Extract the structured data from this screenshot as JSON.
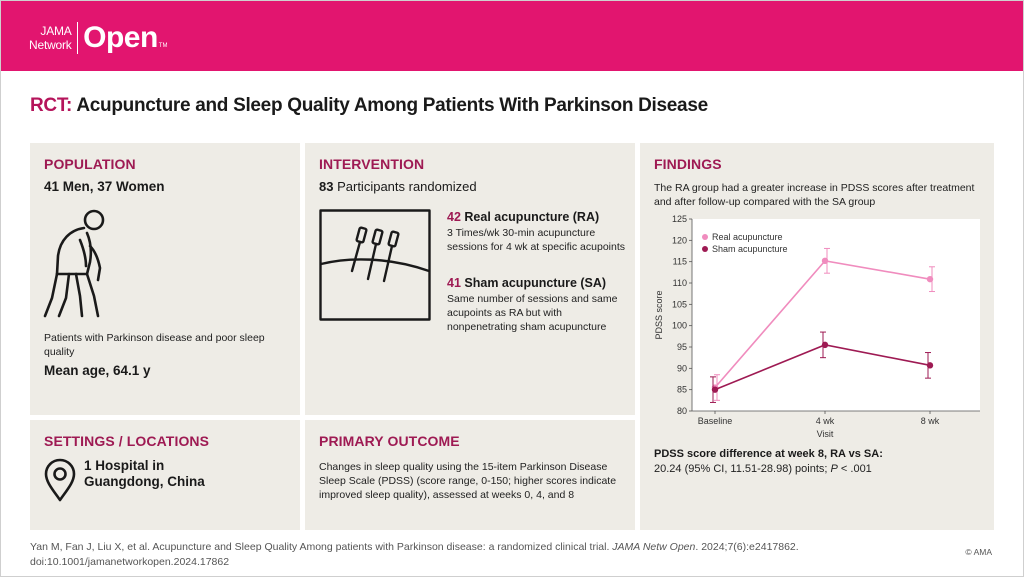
{
  "header": {
    "logo_small_1": "JAMA",
    "logo_small_2": "Network",
    "logo_big": "Open",
    "logo_tm": "TM",
    "brand_color": "#e2156f"
  },
  "title": {
    "tag": "RCT:",
    "text": "Acupuncture and Sleep Quality Among Patients With Parkinson Disease"
  },
  "population": {
    "heading": "POPULATION",
    "counts": "41 Men, 37 Women",
    "description": "Patients with Parkinson disease and poor sleep quality",
    "mean_age": "Mean age, 64.1 y",
    "icon": "person-stooped-icon"
  },
  "intervention": {
    "heading": "INTERVENTION",
    "randomized_num": "83",
    "randomized_text": "Participants randomized",
    "icon": "acupuncture-needles-icon",
    "arms": [
      {
        "num": "42",
        "title": "Real acupuncture (RA)",
        "desc": "3 Times/wk 30-min acupuncture sessions for 4 wk at specific acupoints"
      },
      {
        "num": "41",
        "title": "Sham acupuncture (SA)",
        "desc": "Same number of sessions and same acupoints as RA but with nonpenetrating sham acupuncture"
      }
    ]
  },
  "settings": {
    "heading": "SETTINGS / LOCATIONS",
    "line1": "1 Hospital in",
    "line2": "Guangdong, China",
    "icon": "location-pin-icon"
  },
  "primary_outcome": {
    "heading": "PRIMARY OUTCOME",
    "text": "Changes in sleep quality using the 15-item Parkinson Disease Sleep Scale (PDSS) (score range, 0-150; higher scores indicate improved sleep quality), assessed at weeks 0, 4, and 8"
  },
  "findings": {
    "heading": "FINDINGS",
    "description": "The RA group had a greater increase in PDSS scores after treatment and after follow-up compared with the SA group",
    "diff_title": "PDSS score difference at week 8, RA vs SA:",
    "diff_value_pre": "20.24 (95% CI, 11.51-28.98) points; ",
    "diff_value_p": "P",
    "diff_value_post": " < .001"
  },
  "chart_data": {
    "type": "line",
    "categories": [
      "Baseline",
      "4 wk",
      "8 wk"
    ],
    "xlabel": "Visit",
    "ylabel": "PDSS score",
    "ylim": [
      80,
      125
    ],
    "yticks": [
      80,
      85,
      90,
      95,
      100,
      105,
      110,
      115,
      120,
      125
    ],
    "legend_position": "top-left",
    "series": [
      {
        "name": "Real acupuncture",
        "color": "#f08cbe",
        "values": [
          85.5,
          115.2,
          110.9
        ],
        "ci_low": [
          82.5,
          112.3,
          108.0
        ],
        "ci_high": [
          88.5,
          118.1,
          113.8
        ]
      },
      {
        "name": "Sham acupuncture",
        "color": "#9e1a53",
        "values": [
          85.0,
          95.5,
          90.7
        ],
        "ci_low": [
          82.0,
          92.5,
          87.7
        ],
        "ci_high": [
          88.0,
          98.5,
          93.7
        ]
      }
    ]
  },
  "citation": {
    "authors": "Yan M, Fan J, Liu X, et al. Acupuncture and Sleep Quality Among patients with Parkinson disease: a randomized clinical trial. ",
    "journal": "JAMA Netw Open",
    "details": ". 2024;7(6):e2417862.",
    "doi": "doi:10.1001/jamanetworkopen.2024.17862",
    "copyright": "© AMA"
  }
}
